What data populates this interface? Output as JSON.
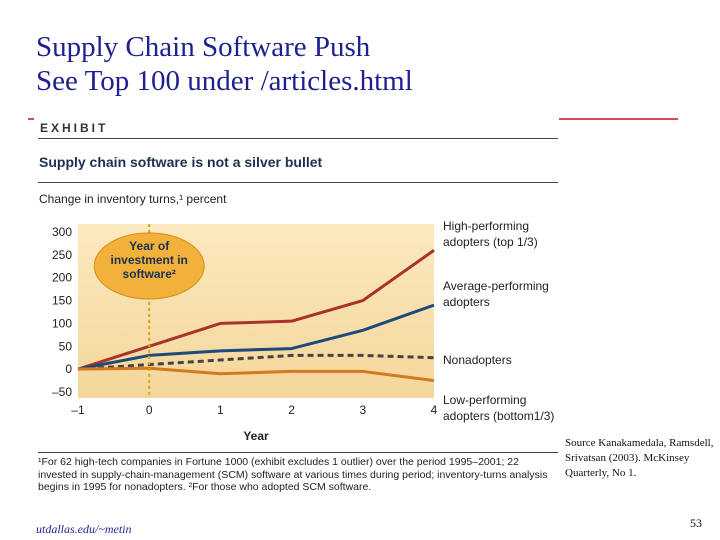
{
  "slide": {
    "title_line1": "Supply Chain Software Push",
    "title_line2": "See Top 100 under /articles.html",
    "source_text": "Source Kanakamedala, Ramsdell, Srivatsan (2003). McKinsey Quarterly, No 1.",
    "footer_left": "utdallas.edu/~metin",
    "page_number": "53"
  },
  "exhibit": {
    "label": "EXHIBIT",
    "title": "Supply chain software is not a silver bullet",
    "footnote": "¹For 62 high-tech companies in Fortune 1000 (exhibit excludes 1 outlier) over the period 1995–2001; 22 invested in supply-chain-management (SCM) software at various times during period; inventory-turns analysis begins in 1995 for nonadopters. ²For those who adopted SCM software."
  },
  "chart_data": {
    "type": "line",
    "title": "Supply chain software is not a silver bullet",
    "ylabel": "Change in inventory turns,¹ percent",
    "xlabel": "Year",
    "x": [
      -1,
      0,
      1,
      2,
      3,
      4
    ],
    "xlim": [
      -1,
      4
    ],
    "ylim": [
      -50,
      300
    ],
    "yticks": [
      -50,
      0,
      50,
      100,
      150,
      200,
      250,
      300
    ],
    "xticks": [
      -1,
      0,
      1,
      2,
      3,
      4
    ],
    "annotation": {
      "lines": [
        "Year of",
        "investment in",
        "software²"
      ],
      "x": 0
    },
    "series": [
      {
        "name": "High-performing adopters (top 1/3)",
        "label_lines": [
          "High-performing",
          "adopters (top 1/3)"
        ],
        "color": "#a8322c",
        "values": [
          0,
          50,
          100,
          105,
          150,
          260
        ]
      },
      {
        "name": "Average-performing adopters",
        "label_lines": [
          "Average-performing",
          "adopters"
        ],
        "color": "#1e4a7a",
        "values": [
          0,
          30,
          40,
          45,
          85,
          140
        ]
      },
      {
        "name": "Nonadopters",
        "label_lines": [
          "Nonadopters"
        ],
        "color": "#444444",
        "dashed": true,
        "values": [
          0,
          10,
          20,
          30,
          30,
          25
        ]
      },
      {
        "name": "Low-performing adopters (bottom 1/3)",
        "label_lines": [
          "Low-performing",
          "adopters (bottom1/3)"
        ],
        "color": "#d47a1e",
        "values": [
          0,
          2,
          -10,
          -5,
          -5,
          -25
        ]
      }
    ]
  }
}
